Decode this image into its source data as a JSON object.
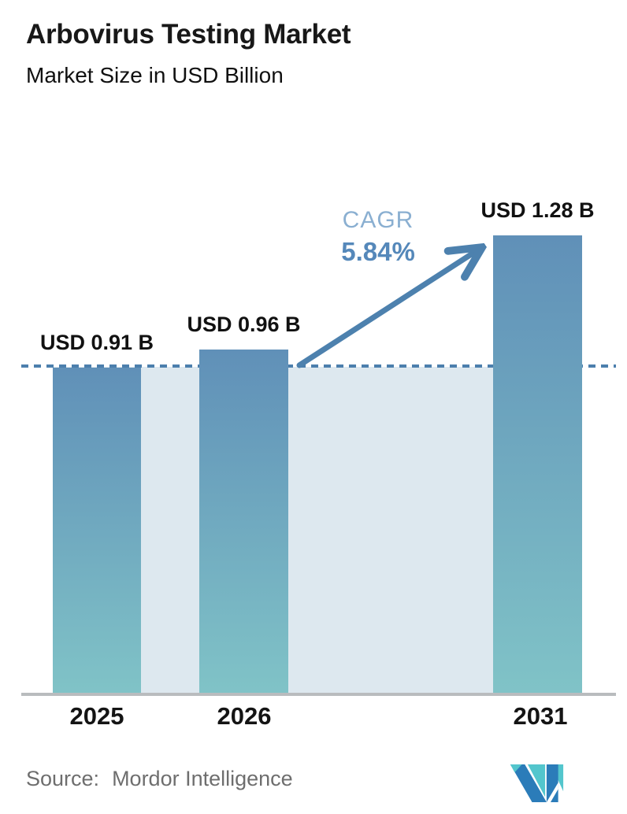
{
  "header": {
    "title": "Arbovirus Testing Market",
    "subtitle": "Market Size in USD Billion"
  },
  "chart_data": {
    "type": "bar",
    "title": "Arbovirus Testing Market",
    "subtitle": "Market Size in USD Billion",
    "unit": "USD Billion",
    "categories": [
      "2025",
      "2026",
      "2031"
    ],
    "values": [
      0.91,
      0.96,
      1.28
    ],
    "value_labels": [
      "USD 0.91 B",
      "USD 0.96 B",
      "USD 1.28 B"
    ],
    "cagr": {
      "label": "CAGR",
      "value": "5.84%"
    },
    "baseline_value": 0.91,
    "ylim": [
      0,
      1.6
    ],
    "grid": false,
    "legend": false,
    "annotations": [
      "dashed reference line at first-year value",
      "growth arrow from 2026 bar to 2031 bar"
    ],
    "colors": {
      "bar_gradient_top": "#6090b8",
      "bar_gradient_bottom": "#80c3c7",
      "plot_background": "#dde8ef",
      "dashed_line": "#4c7fad",
      "arrow": "#4d81ae",
      "cagr_label": "#8aafd1",
      "cagr_value": "#5588ba",
      "axis_line": "#b9bcbe"
    }
  },
  "footer": {
    "source_label": "Source:",
    "source_value": "Mordor Intelligence",
    "logo": "mordor-intelligence-logo"
  }
}
